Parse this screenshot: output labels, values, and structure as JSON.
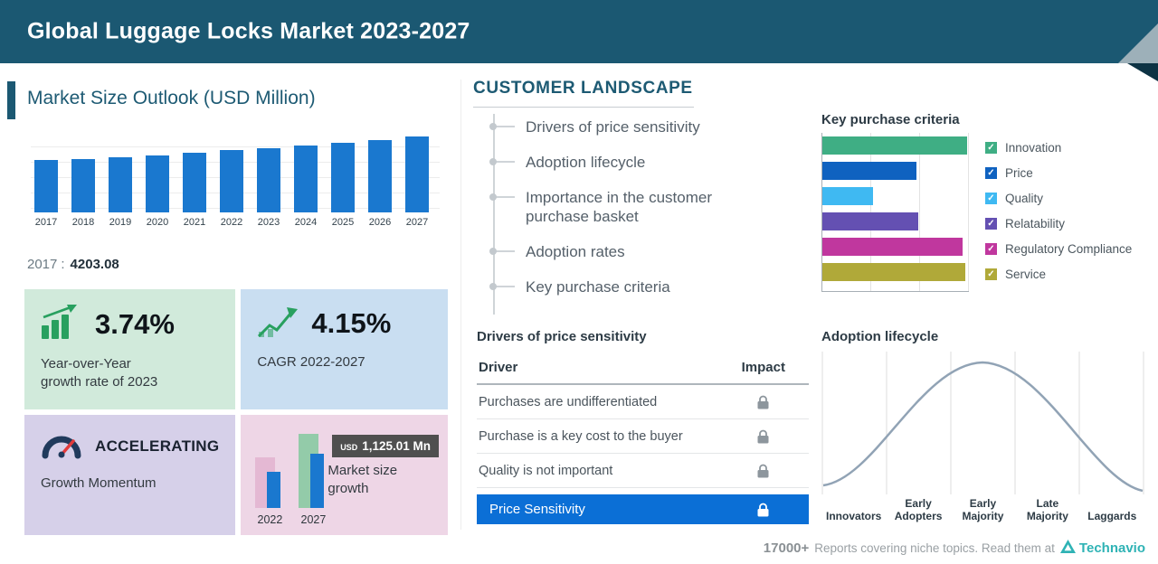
{
  "header": {
    "title": "Global Luggage Locks Market 2023-2027"
  },
  "market_size": {
    "section_title": "Market Size Outlook (USD Million)",
    "base_year": "2017",
    "base_sep": ":",
    "base_value": "4203.08",
    "yoy_card": {
      "value": "3.74%",
      "label1": "Year-over-Year",
      "label2": "growth rate of 2023"
    },
    "cagr_card": {
      "value": "4.15%",
      "label": "CAGR 2022-2027"
    },
    "momentum_card": {
      "value": "ACCELERATING",
      "label": "Growth Momentum"
    },
    "growth_card": {
      "badge_unit": "USD",
      "badge_value": "1,125.01 Mn",
      "label1": "Market size",
      "label2": "growth",
      "year_start": "2022",
      "year_end": "2027"
    }
  },
  "customer_landscape": {
    "title": "CUSTOMER LANDSCAPE",
    "items": [
      "Drivers of price sensitivity",
      "Adoption lifecycle",
      "Importance in the customer purchase basket",
      "Adoption rates",
      "Key purchase criteria"
    ]
  },
  "price_sensitivity": {
    "title": "Drivers of price sensitivity",
    "col_driver": "Driver",
    "col_impact": "Impact",
    "rows": [
      "Purchases are undifferentiated",
      "Purchase is a key cost to the buyer",
      "Quality is not important"
    ],
    "highlight": "Price Sensitivity"
  },
  "footer": {
    "count": "17000+",
    "text": "Reports covering niche topics. Read them at",
    "brand": "Technavio"
  },
  "colors": {
    "header_bg": "#1b5872",
    "bar_blue": "#1a78cf",
    "highlight_blue": "#0b6fd6",
    "card_green": "#d1eadb",
    "card_blue": "#c9def1",
    "card_purple": "#d6d0e9",
    "card_pink": "#eed6e6",
    "curve_gray": "#91a3b5",
    "brand_teal": "#2fb3b5"
  },
  "chart_data": [
    {
      "id": "market-size-outlook",
      "type": "bar",
      "title": "Market Size Outlook (USD Million)",
      "categories": [
        "2017",
        "2018",
        "2019",
        "2020",
        "2021",
        "2022",
        "2023",
        "2024",
        "2025",
        "2026",
        "2027"
      ],
      "values": [
        4203.08,
        4310,
        4440,
        4560,
        4770,
        4991,
        5177.66,
        5395,
        5620,
        5860,
        6116.01
      ],
      "ylabel": "USD Million",
      "bar_color": "#1a78cf",
      "note": "Only 2017 labeled (4203.08); other values estimated from bar heights, YoY 3.74% (2023), CAGR 4.15% (2022-2027), growth USD 1,125.01 Mn"
    },
    {
      "id": "key-purchase-criteria",
      "type": "bar",
      "orientation": "horizontal",
      "title": "Key purchase criteria",
      "categories": [
        "Innovation",
        "Price",
        "Quality",
        "Relatability",
        "Regulatory Compliance",
        "Service"
      ],
      "values": [
        100,
        65,
        35,
        66,
        97,
        99
      ],
      "colors": [
        "#3fae84",
        "#0f62c0",
        "#3fb9f2",
        "#6450b2",
        "#c0379e",
        "#b0a939"
      ],
      "legend_position": "right",
      "note": "values are relative bar lengths (percent of longest), no axis labels shown"
    },
    {
      "id": "adoption-lifecycle",
      "type": "area",
      "curve": "bell",
      "title": "Adoption lifecycle",
      "categories": [
        "Innovators",
        "Early Adopters",
        "Early Majority",
        "Late Majority",
        "Laggards"
      ],
      "grid": true
    },
    {
      "id": "market-size-growth",
      "type": "bar",
      "title": "Market size growth",
      "categories": [
        "2022",
        "2027"
      ],
      "growth_value": "USD 1,125.01 Mn"
    }
  ]
}
